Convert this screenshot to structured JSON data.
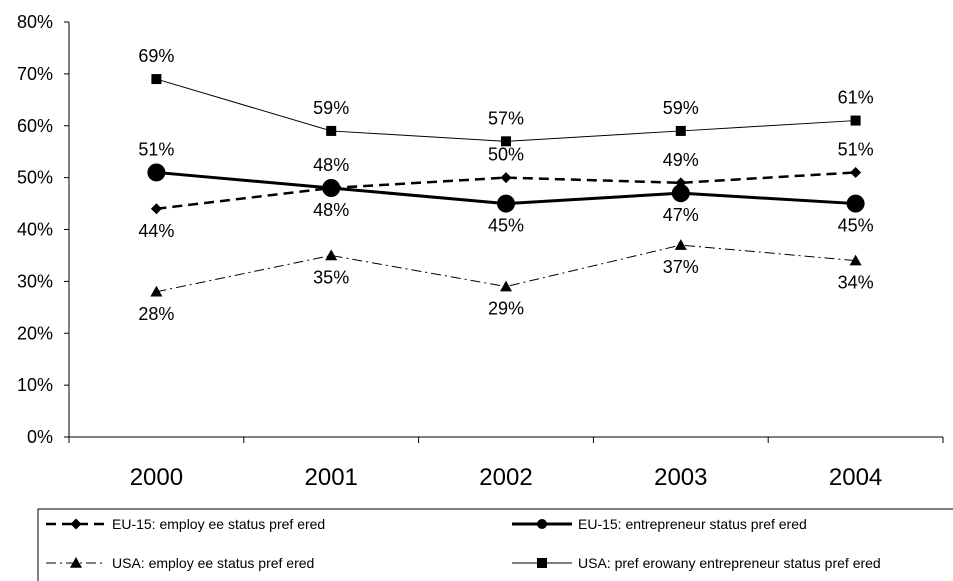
{
  "chart_data": {
    "type": "line",
    "categories": [
      "2000",
      "2001",
      "2002",
      "2003",
      "2004"
    ],
    "ylim": [
      0,
      80
    ],
    "yticks": [
      "0%",
      "10%",
      "20%",
      "30%",
      "40%",
      "50%",
      "60%",
      "70%",
      "80%"
    ],
    "grid": false,
    "legend_position": "bottom",
    "series": [
      {
        "name": "EU-15: employ ee status pref ered",
        "values": [
          44,
          48,
          50,
          49,
          51
        ],
        "labels": [
          "44%",
          "48%",
          "50%",
          "49%",
          "51%"
        ],
        "line_style": "dashed",
        "marker": "diamond",
        "color": "#000000"
      },
      {
        "name": "EU-15: entrepreneur status pref ered",
        "values": [
          51,
          48,
          45,
          47,
          45
        ],
        "labels": [
          "51%",
          "48%",
          "45%",
          "47%",
          "45%"
        ],
        "line_style": "solid-thick",
        "marker": "circle",
        "color": "#000000"
      },
      {
        "name": "USA: employ ee status pref ered",
        "values": [
          28,
          35,
          29,
          37,
          34
        ],
        "labels": [
          "28%",
          "35%",
          "29%",
          "37%",
          "34%"
        ],
        "line_style": "dash-dot",
        "marker": "triangle",
        "color": "#000000"
      },
      {
        "name": "USA: pref erowany entrepreneur status pref ered",
        "values": [
          69,
          59,
          57,
          59,
          61
        ],
        "labels": [
          "69%",
          "59%",
          "57%",
          "59%",
          "61%"
        ],
        "line_style": "solid-thin",
        "marker": "square",
        "color": "#000000"
      }
    ]
  }
}
